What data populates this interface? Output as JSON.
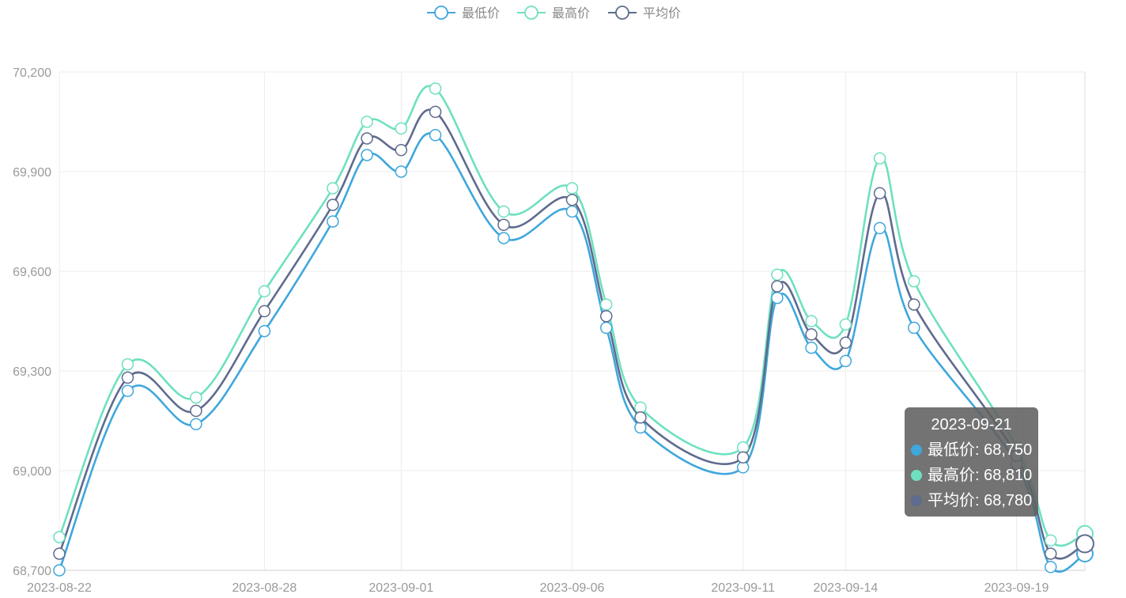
{
  "chart_data": {
    "type": "line",
    "x": [
      "2023-08-22",
      "2023-08-24",
      "2023-08-26",
      "2023-08-28",
      "2023-08-30",
      "2023-08-31",
      "2023-09-01",
      "2023-09-02",
      "2023-09-04",
      "2023-09-06",
      "2023-09-07",
      "2023-09-08",
      "2023-09-11",
      "2023-09-12",
      "2023-09-13",
      "2023-09-14",
      "2023-09-15",
      "2023-09-16",
      "2023-09-19",
      "2023-09-20",
      "2023-09-21"
    ],
    "x_tick_labels": [
      "2023-08-22",
      "2023-08-28",
      "2023-09-01",
      "2023-09-06",
      "2023-09-11",
      "2023-09-14",
      "2023-09-19"
    ],
    "ylim": [
      68700,
      70200
    ],
    "y_ticks": [
      68700,
      69000,
      69300,
      69600,
      69900,
      70200
    ],
    "y_tick_labels": [
      "68,700",
      "69,000",
      "69,300",
      "69,600",
      "69,900",
      "70,200"
    ],
    "grid": true,
    "smooth": true,
    "legend_position": "top-center",
    "series": [
      {
        "name": "最低价",
        "color": "#3fa7dc",
        "values": [
          68700,
          69240,
          69140,
          69420,
          69750,
          69950,
          69900,
          70010,
          69700,
          69780,
          69430,
          69130,
          69010,
          69520,
          69370,
          69330,
          69730,
          69430,
          69020,
          68710,
          68750
        ]
      },
      {
        "name": "最高价",
        "color": "#6ee0c0",
        "values": [
          68800,
          69320,
          69220,
          69540,
          69850,
          70050,
          70030,
          70150,
          69780,
          69850,
          69500,
          69190,
          69070,
          69590,
          69450,
          69440,
          69940,
          69570,
          69070,
          68790,
          68810
        ]
      },
      {
        "name": "平均价",
        "color": "#5f6b8e",
        "values": [
          68750,
          69280,
          69180,
          69480,
          69800,
          70000,
          69965,
          70080,
          69740,
          69815,
          69465,
          69160,
          69040,
          69555,
          69410,
          69385,
          69835,
          69500,
          69045,
          68750,
          68780
        ]
      }
    ],
    "tooltip": {
      "title": "2023-09-21",
      "rows": [
        {
          "label": "最低价: 68,750",
          "color": "#3fa7dc"
        },
        {
          "label": "最高价: 68,810",
          "color": "#6ee0c0"
        },
        {
          "label": "平均价: 68,780",
          "color": "#5f6b8e"
        }
      ]
    }
  }
}
